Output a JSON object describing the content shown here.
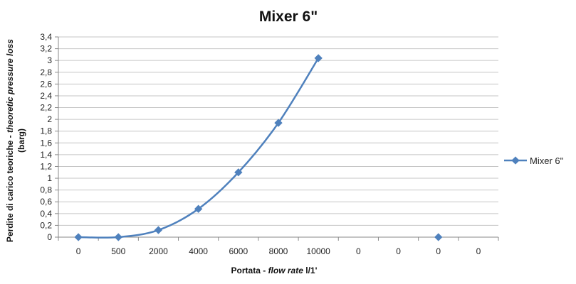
{
  "chart_data": {
    "type": "line",
    "title": "Mixer 6\"",
    "xlabel_plain": "Portata - ",
    "xlabel_italic": "flow rate",
    "xlabel_suffix": " l/1'",
    "ylabel_line1_plain": "Perdite di carico teoriche - ",
    "ylabel_line1_italic": "theoretic pressure loss",
    "ylabel_line2": "(barg)",
    "categories": [
      "0",
      "500",
      "2000",
      "4000",
      "6000",
      "8000",
      "10000",
      "0",
      "0",
      "0",
      "0"
    ],
    "series": [
      {
        "name": "Mixer 6\"",
        "color": "#4f81bd",
        "values": [
          0,
          0,
          0.12,
          0.48,
          1.1,
          1.94,
          3.04,
          null,
          null,
          0,
          null
        ]
      }
    ],
    "ylim": [
      0,
      3.4
    ],
    "ystep": 0.2,
    "yticks": [
      "0",
      "0,2",
      "0,4",
      "0,6",
      "0,8",
      "1",
      "1,2",
      "1,4",
      "1,6",
      "1,8",
      "2",
      "2,2",
      "2,4",
      "2,6",
      "2,8",
      "3",
      "3,2",
      "3,4"
    ],
    "grid": true,
    "legend_position": "right"
  }
}
